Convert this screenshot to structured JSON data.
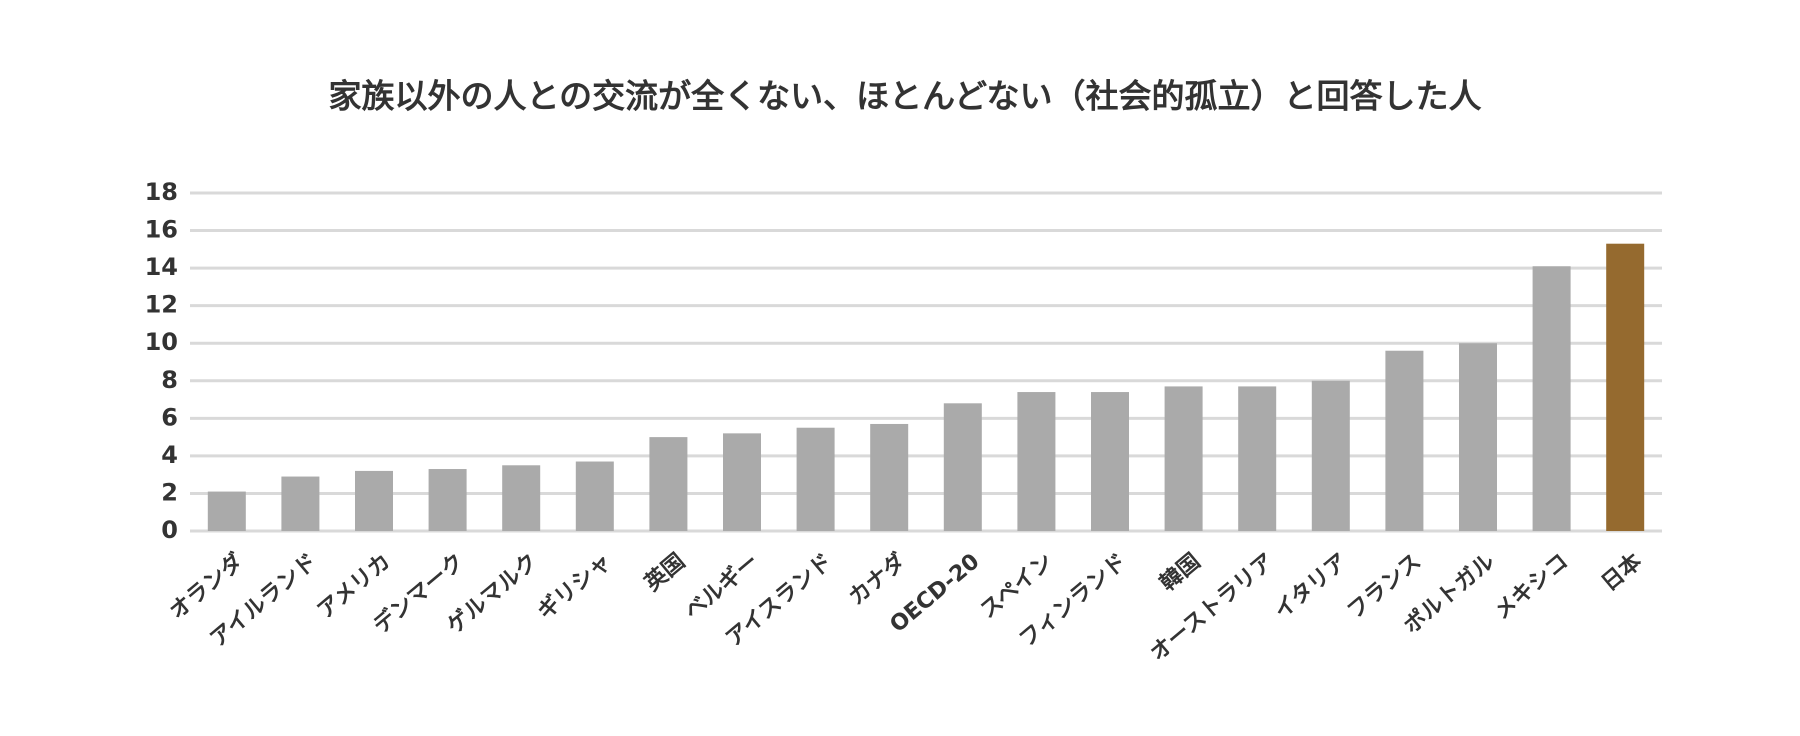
{
  "chart_data": {
    "type": "bar",
    "title": "家族以外の人との交流が全くない、ほとんどない（社会的孤立）と回答した人",
    "categories": [
      "オランダ",
      "アイルランド",
      "アメリカ",
      "デンマーク",
      "ゲルマルク",
      "ギリシャ",
      "英国",
      "ベルギー",
      "アイスランド",
      "カナダ",
      "OECD-20",
      "スペイン",
      "フィンランド",
      "韓国",
      "オーストラリア",
      "イタリア",
      "フランス",
      "ポルトガル",
      "メキシコ",
      "日本"
    ],
    "values": [
      2.1,
      2.9,
      3.2,
      3.3,
      3.5,
      3.7,
      5.0,
      5.2,
      5.5,
      5.7,
      6.8,
      7.4,
      7.4,
      7.7,
      7.7,
      8.0,
      9.6,
      10.0,
      14.1,
      15.3
    ],
    "colors": [
      "#aaaaaa",
      "#aaaaaa",
      "#aaaaaa",
      "#aaaaaa",
      "#aaaaaa",
      "#aaaaaa",
      "#aaaaaa",
      "#aaaaaa",
      "#aaaaaa",
      "#aaaaaa",
      "#aaaaaa",
      "#aaaaaa",
      "#aaaaaa",
      "#aaaaaa",
      "#aaaaaa",
      "#aaaaaa",
      "#aaaaaa",
      "#aaaaaa",
      "#aaaaaa",
      "#956a2f"
    ],
    "ylim": [
      0,
      18
    ],
    "yticks": [
      0,
      2,
      4,
      6,
      8,
      10,
      12,
      14,
      16,
      18
    ],
    "grid": true
  }
}
